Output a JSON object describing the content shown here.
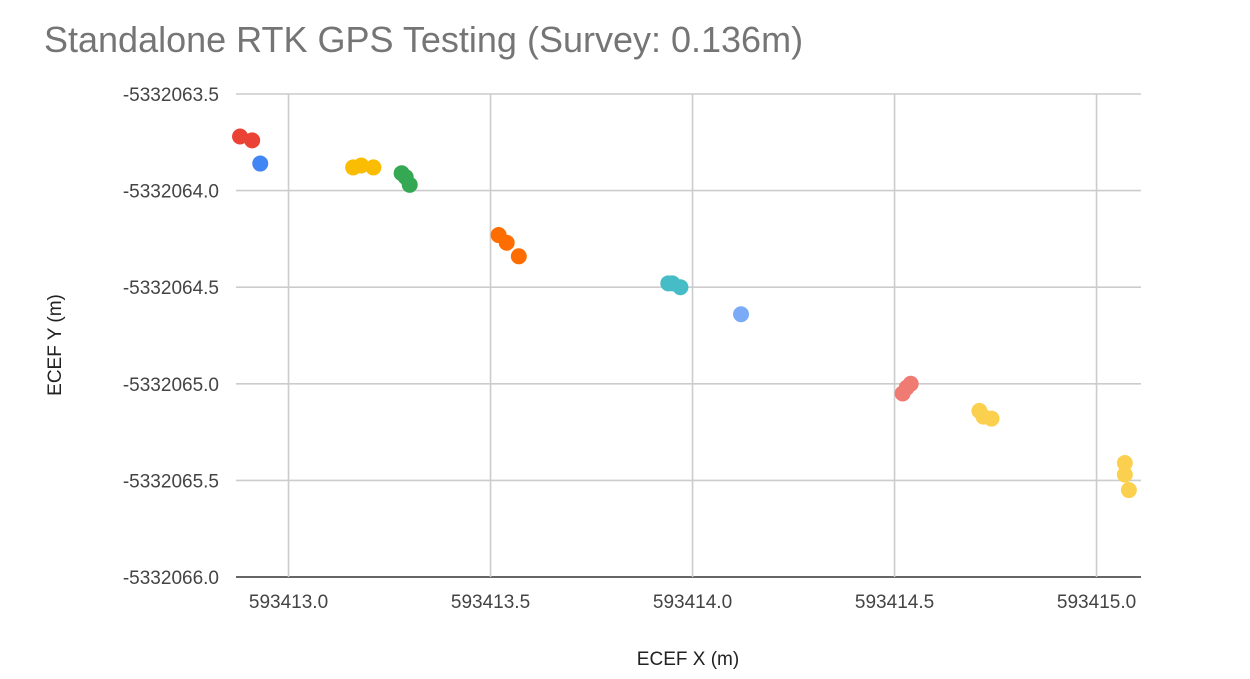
{
  "chart_data": {
    "type": "scatter",
    "title": "Standalone RTK GPS Testing (Survey: 0.136m)",
    "xlabel": "ECEF X (m)",
    "ylabel": "ECEF Y (m)",
    "xlim": [
      593412.87,
      593415.11
    ],
    "ylim": [
      -5332066.0,
      -5332063.5
    ],
    "x_ticks": [
      "593413.0",
      "593413.5",
      "593414.0",
      "593414.5",
      "593415.0"
    ],
    "x_tick_values": [
      593413.0,
      593413.5,
      593414.0,
      593414.5,
      593415.0
    ],
    "y_ticks": [
      "-5332063.5",
      "-5332064.0",
      "-5332064.5",
      "-5332065.0",
      "-5332065.5",
      "-5332066.0"
    ],
    "y_tick_values": [
      -5332063.5,
      -5332064.0,
      -5332064.5,
      -5332065.0,
      -5332065.5,
      -5332066.0
    ],
    "grid": true,
    "legend": "none",
    "series": [
      {
        "color": "#ea4335",
        "points": [
          [
            593412.88,
            -5332063.72
          ],
          [
            593412.91,
            -5332063.74
          ]
        ]
      },
      {
        "color": "#4285f4",
        "points": [
          [
            593412.93,
            -5332063.86
          ]
        ]
      },
      {
        "color": "#fbbc04",
        "points": [
          [
            593413.16,
            -5332063.88
          ],
          [
            593413.18,
            -5332063.87
          ],
          [
            593413.21,
            -5332063.88
          ]
        ]
      },
      {
        "color": "#34a853",
        "points": [
          [
            593413.28,
            -5332063.91
          ],
          [
            593413.29,
            -5332063.93
          ],
          [
            593413.3,
            -5332063.97
          ]
        ]
      },
      {
        "color": "#ff6d01",
        "points": [
          [
            593413.52,
            -5332064.23
          ],
          [
            593413.54,
            -5332064.27
          ],
          [
            593413.57,
            -5332064.34
          ]
        ]
      },
      {
        "color": "#46bdc6",
        "points": [
          [
            593413.94,
            -5332064.48
          ],
          [
            593413.95,
            -5332064.48
          ],
          [
            593413.97,
            -5332064.5
          ]
        ]
      },
      {
        "color": "#7baaf7",
        "points": [
          [
            593414.12,
            -5332064.64
          ]
        ]
      },
      {
        "color": "#f07b72",
        "points": [
          [
            593414.52,
            -5332065.05
          ],
          [
            593414.53,
            -5332065.02
          ],
          [
            593414.54,
            -5332065.0
          ]
        ]
      },
      {
        "color": "#fcd04f",
        "points": [
          [
            593414.71,
            -5332065.14
          ],
          [
            593414.72,
            -5332065.17
          ],
          [
            593414.74,
            -5332065.18
          ],
          [
            593415.07,
            -5332065.41
          ],
          [
            593415.07,
            -5332065.47
          ],
          [
            593415.08,
            -5332065.55
          ]
        ]
      }
    ]
  }
}
